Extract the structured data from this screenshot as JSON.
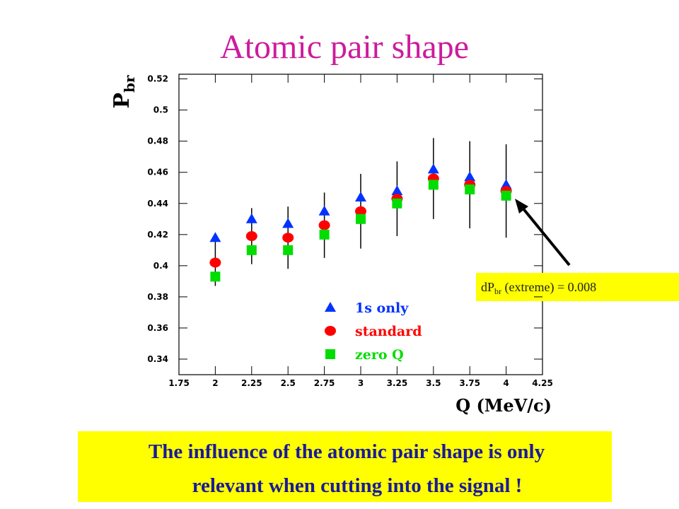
{
  "chart_data": {
    "type": "scatter",
    "title": "Atomic pair shape",
    "xlabel": "Q (MeV/c)",
    "ylabel": "P",
    "ylabel_sub": "br",
    "x": [
      2,
      2.25,
      2.5,
      2.75,
      3,
      3.25,
      3.5,
      3.75,
      4
    ],
    "series": [
      {
        "name": "1s only",
        "color": "#0033ff",
        "marker": "triangle",
        "values": [
          0.418,
          0.43,
          0.427,
          0.435,
          0.444,
          0.448,
          0.462,
          0.457,
          0.452
        ]
      },
      {
        "name": "standard",
        "color": "#ff0000",
        "marker": "circle",
        "values": [
          0.402,
          0.419,
          0.418,
          0.426,
          0.435,
          0.443,
          0.456,
          0.452,
          0.448
        ],
        "errors": [
          0.015,
          0.018,
          0.02,
          0.021,
          0.024,
          0.024,
          0.026,
          0.028,
          0.03
        ]
      },
      {
        "name": "zero Q",
        "color": "#00dd00",
        "marker": "square",
        "values": [
          0.393,
          0.41,
          0.41,
          0.42,
          0.43,
          0.44,
          0.452,
          0.449,
          0.445
        ]
      }
    ],
    "xlim": [
      1.75,
      4.25
    ],
    "xticks": [
      1.75,
      2,
      2.25,
      2.5,
      2.75,
      3,
      3.25,
      3.5,
      3.75,
      4,
      4.25
    ],
    "ylim": [
      0.33,
      0.523
    ],
    "yticks": [
      0.34,
      0.36,
      0.38,
      0.4,
      0.42,
      0.44,
      0.46,
      0.48,
      0.5,
      0.52
    ],
    "annotation": {
      "prefix": "dP",
      "sub": "br",
      "suffix": " (extreme) = 0.008"
    },
    "note": [
      "The influence of the atomic pair shape is only",
      "relevant when cutting into the signal !"
    ]
  }
}
